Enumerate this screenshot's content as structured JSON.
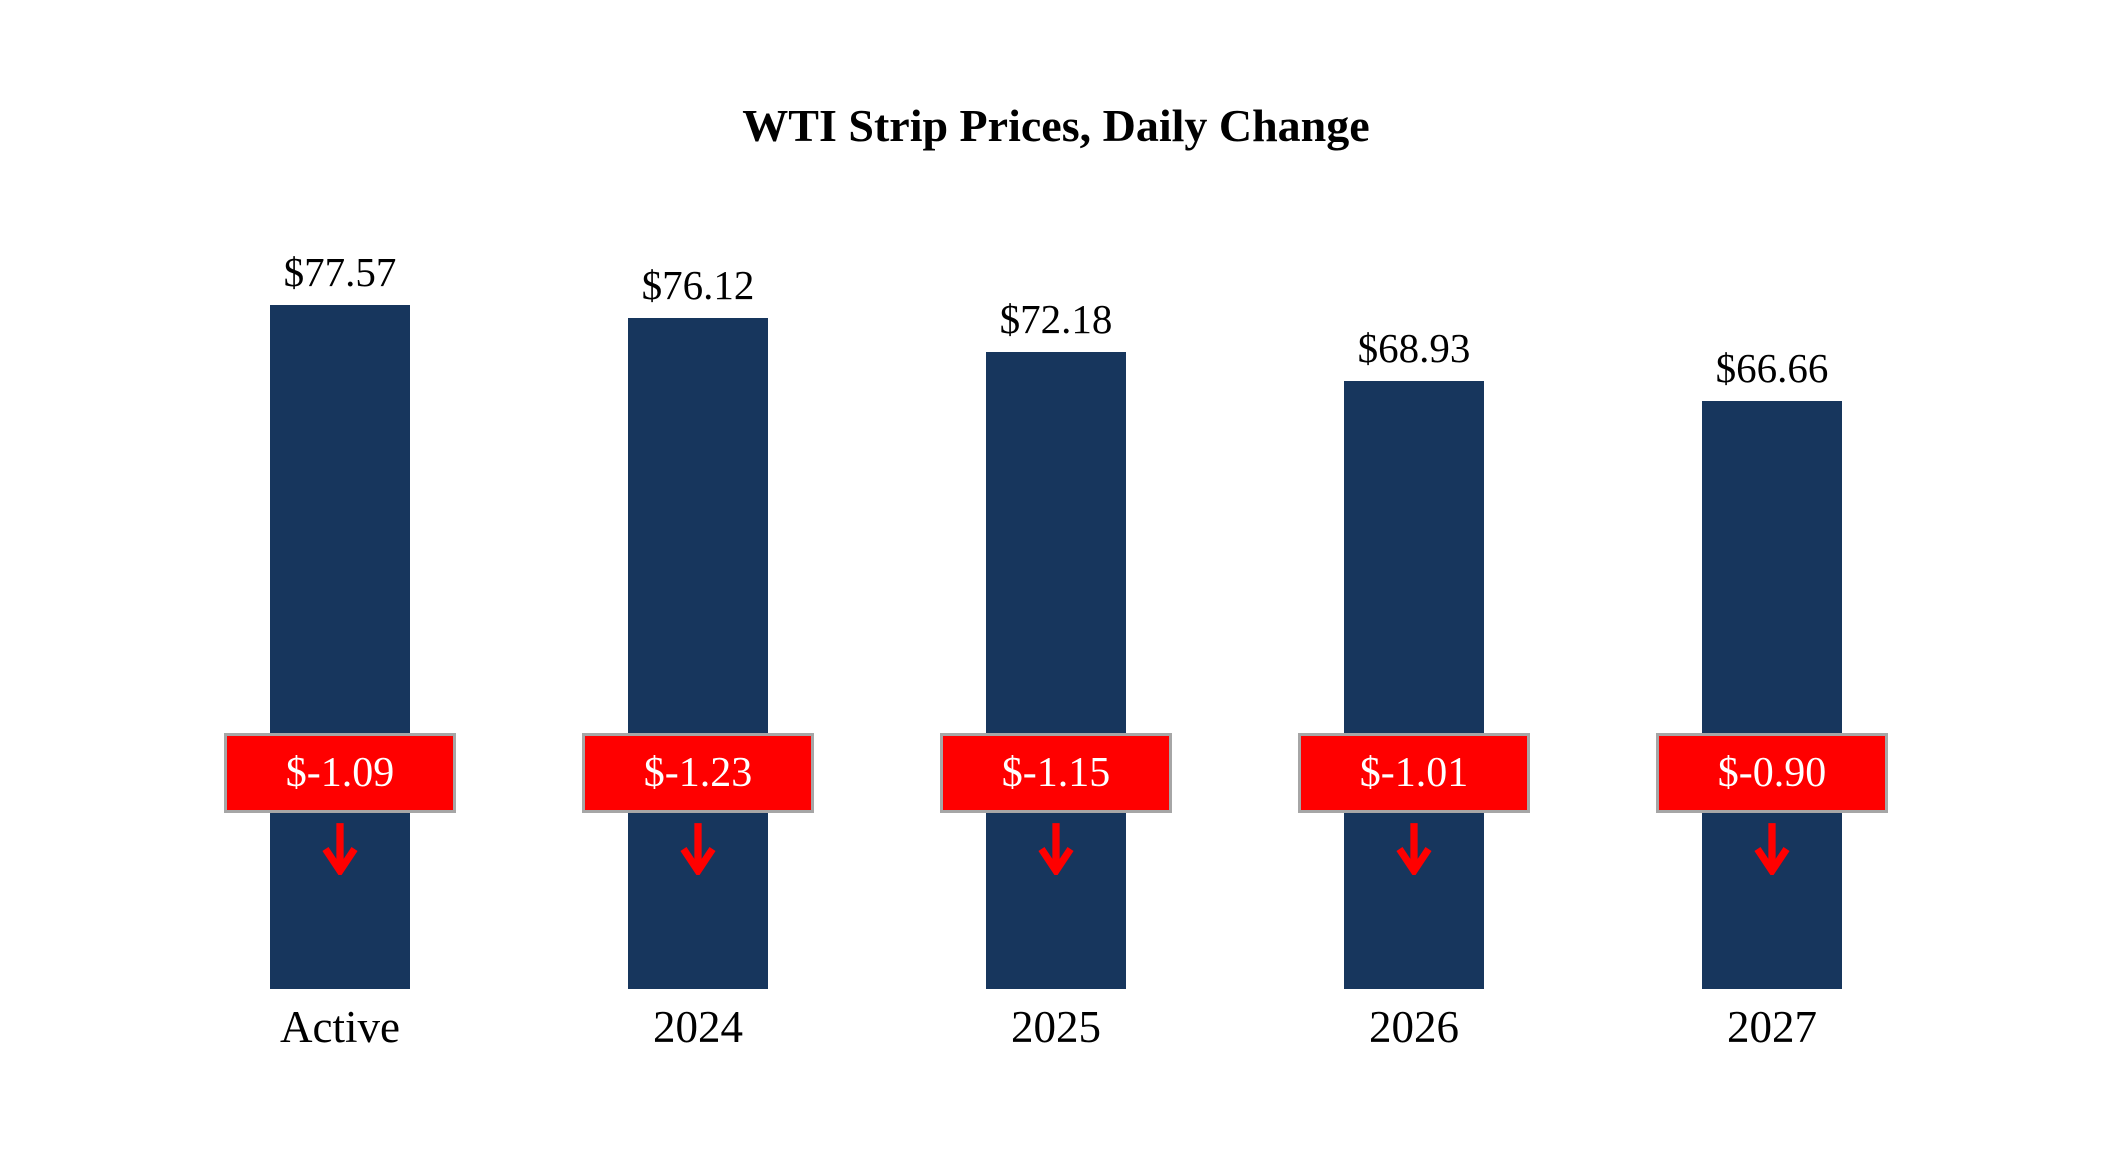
{
  "chart_data": {
    "type": "bar",
    "title": "WTI Strip Prices, Daily Change",
    "categories": [
      "Active",
      "2024",
      "2025",
      "2026",
      "2027"
    ],
    "values": [
      77.57,
      76.12,
      72.18,
      68.93,
      66.66
    ],
    "changes": [
      -1.09,
      -1.23,
      -1.15,
      -1.01,
      -0.9
    ],
    "price_labels": [
      "$77.57",
      "$76.12",
      "$72.18",
      "$68.93",
      "$66.66"
    ],
    "change_labels": [
      "$-1.09",
      "$-1.23",
      "$-1.15",
      "$-1.01",
      "$-0.90"
    ],
    "ylim": [
      0,
      80
    ],
    "grid": false,
    "legend": false,
    "bar_color": "#17365D",
    "change_box_color": "#FF0000",
    "change_text_color": "#FFFFFF",
    "change_box_border_color": "#A6A6A6",
    "arrow_color": "#FF0000",
    "direction_indicator": "down-arrow"
  }
}
